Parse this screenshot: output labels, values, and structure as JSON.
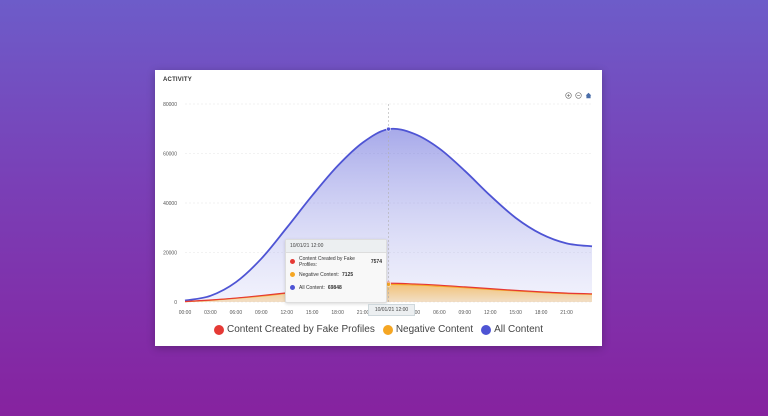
{
  "card": {
    "title": "ACTIVITY"
  },
  "toolbar": {
    "zoom_in_icon": "zoom-in-icon",
    "zoom_out_icon": "zoom-out-icon",
    "home_icon": "home-icon"
  },
  "colors": {
    "fake": "#e53935",
    "negative": "#f5a623",
    "all": "#4e54d4"
  },
  "tooltip": {
    "header": "10/01/21 12:00",
    "rows": [
      {
        "label": "Content Created by Fake Profiles:",
        "value": "7574"
      },
      {
        "label": "Negative Content:",
        "value": "7125"
      },
      {
        "label": "All Content:",
        "value": "69848"
      }
    ]
  },
  "x_highlight": "10/01/21 12:00",
  "legend": [
    {
      "label": "Content Created by Fake Profiles"
    },
    {
      "label": "Negative Content"
    },
    {
      "label": "All Content"
    }
  ],
  "chart_data": {
    "type": "area",
    "title": "ACTIVITY",
    "xlabel": "",
    "ylabel": "",
    "ylim": [
      0,
      80000
    ],
    "y_ticks": [
      "80000",
      "60000",
      "40000",
      "20000",
      "0"
    ],
    "x_ticks": [
      "00:00",
      "03:00",
      "06:00",
      "09:00",
      "12:00",
      "15:00",
      "18:00",
      "21:00",
      "",
      "03:00",
      "06:00",
      "09:00",
      "12:00",
      "15:00",
      "18:00",
      "21:00"
    ],
    "x": [
      0,
      3,
      6,
      9,
      12,
      15,
      18,
      21,
      24,
      27,
      30,
      33,
      36,
      39,
      42,
      45,
      48
    ],
    "series": [
      {
        "name": "Content Created by Fake Profiles",
        "values": [
          200,
          800,
          1600,
          2600,
          3700,
          4800,
          5900,
          6900,
          7574,
          7300,
          6800,
          6100,
          5400,
          4700,
          4100,
          3600,
          3300
        ]
      },
      {
        "name": "Negative Content",
        "values": [
          150,
          700,
          1500,
          2400,
          3500,
          4600,
          5600,
          6600,
          7125,
          6900,
          6400,
          5800,
          5100,
          4500,
          3900,
          3400,
          3100
        ]
      },
      {
        "name": "All Content",
        "values": [
          600,
          2500,
          8000,
          17500,
          30000,
          43000,
          55000,
          64500,
          69848,
          68000,
          62000,
          53000,
          43000,
          34000,
          27500,
          23700,
          22500
        ]
      }
    ],
    "grid": true,
    "legend": "bottom-center"
  }
}
